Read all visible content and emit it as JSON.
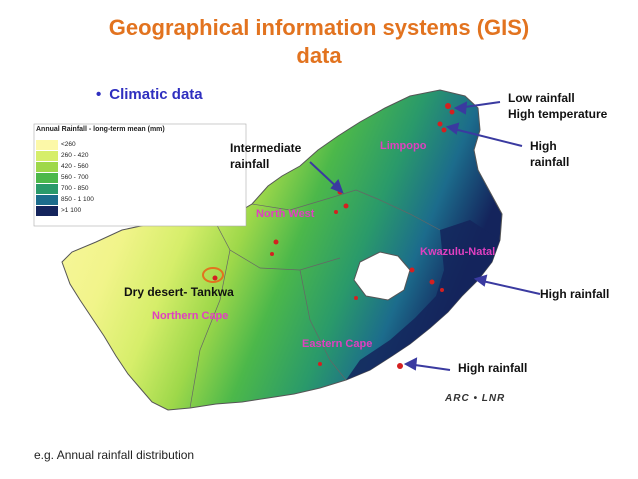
{
  "title_line1": "Geographical information systems (GIS)",
  "title_line2": "data",
  "bullet": "Climatic data",
  "legend": {
    "title": "Annual Rainfall - long-term mean (mm)",
    "items": [
      {
        "label": "<260",
        "color": "#fcf8a8"
      },
      {
        "label": "260 - 420",
        "color": "#d6ee6a"
      },
      {
        "label": "420 - 560",
        "color": "#9ed84a"
      },
      {
        "label": "560 - 700",
        "color": "#4cb84a"
      },
      {
        "label": "700 - 850",
        "color": "#2a9a6a"
      },
      {
        "label": "850 - 1 100",
        "color": "#1c6c8c"
      },
      {
        "label": ">1 100",
        "color": "#14245c"
      }
    ]
  },
  "labels": {
    "low_rainfall_high_temp_1": "Low rainfall",
    "low_rainfall_high_temp_2": "High temperature",
    "high_rainfall_ne_1": "High",
    "high_rainfall_ne_2": "rainfall",
    "intermediate_1": "Intermediate",
    "intermediate_2": "rainfall",
    "dry_desert": "Dry desert- Tankwa",
    "high_rainfall_east": "High rainfall",
    "high_rainfall_south": "High rainfall"
  },
  "provinces": {
    "limpopo": "Limpopo",
    "north_west": "North West",
    "kwazulu_natal": "Kwazulu-Natal",
    "northern_cape": "Northern Cape",
    "eastern_cape": "Eastern Cape"
  },
  "logo": "ARC • LNR",
  "caption": "e.g. Annual rainfall distribution",
  "colors": {
    "title": "#e2731f",
    "bullet": "#2f2fbf",
    "province_label": "#e040c0",
    "arrow": "#3a3aa0",
    "marker": "#d42020"
  }
}
